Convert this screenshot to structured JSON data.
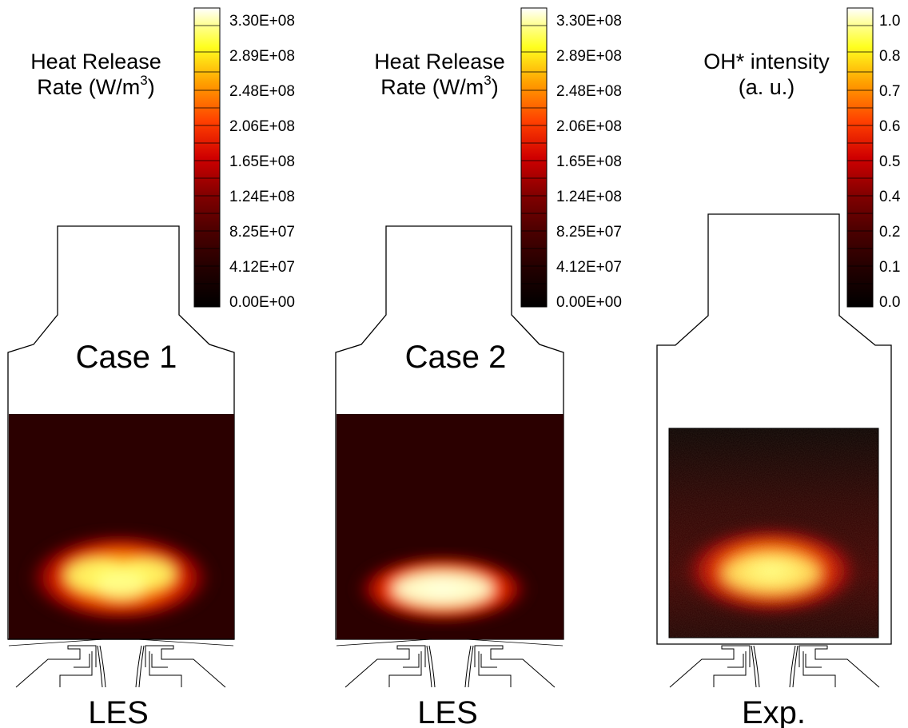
{
  "colormap": {
    "stops": [
      "#000000",
      "#3a0000",
      "#6a0000",
      "#a00000",
      "#d80000",
      "#ff3000",
      "#ff8000",
      "#ffc000",
      "#ffff20",
      "#ffffa0",
      "#ffffff"
    ]
  },
  "panels": [
    {
      "id": "case1",
      "colorbar_title_line1": "Heat Release",
      "colorbar_title_line2_prefix": "Rate (W/m",
      "colorbar_title_sup": "3",
      "colorbar_title_line2_suffix": ")",
      "colorbar_ticks": [
        "3.30E+08",
        "2.89E+08",
        "2.48E+08",
        "2.06E+08",
        "1.65E+08",
        "1.24E+08",
        "8.25E+07",
        "4.12E+07",
        "0.00E+00"
      ],
      "case_label": "Case 1",
      "bottom_label": "LES",
      "field": {
        "type": "simulation",
        "peak_fraction": 0.92,
        "background_level": 0.08
      }
    },
    {
      "id": "case2",
      "colorbar_title_line1": "Heat Release",
      "colorbar_title_line2_prefix": "Rate (W/m",
      "colorbar_title_sup": "3",
      "colorbar_title_line2_suffix": ")",
      "colorbar_ticks": [
        "3.30E+08",
        "2.89E+08",
        "2.48E+08",
        "2.06E+08",
        "1.65E+08",
        "1.24E+08",
        "8.25E+07",
        "4.12E+07",
        "0.00E+00"
      ],
      "case_label": "Case 2",
      "bottom_label": "LES",
      "field": {
        "type": "simulation",
        "peak_fraction": 1.0,
        "background_level": 0.08
      }
    },
    {
      "id": "exp",
      "colorbar_title_line1": "OH* intensity",
      "colorbar_title_line2_prefix": "(a. u.)",
      "colorbar_title_sup": "",
      "colorbar_title_line2_suffix": "",
      "colorbar_ticks": [
        "1.0",
        "0.8",
        "0.7",
        "0.6",
        "0.5",
        "0.4",
        "0.2",
        "0.1",
        "0.0"
      ],
      "case_label": "",
      "bottom_label": "Exp.",
      "field": {
        "type": "experiment",
        "peak_fraction": 0.9,
        "background_level": 0.05
      }
    }
  ]
}
